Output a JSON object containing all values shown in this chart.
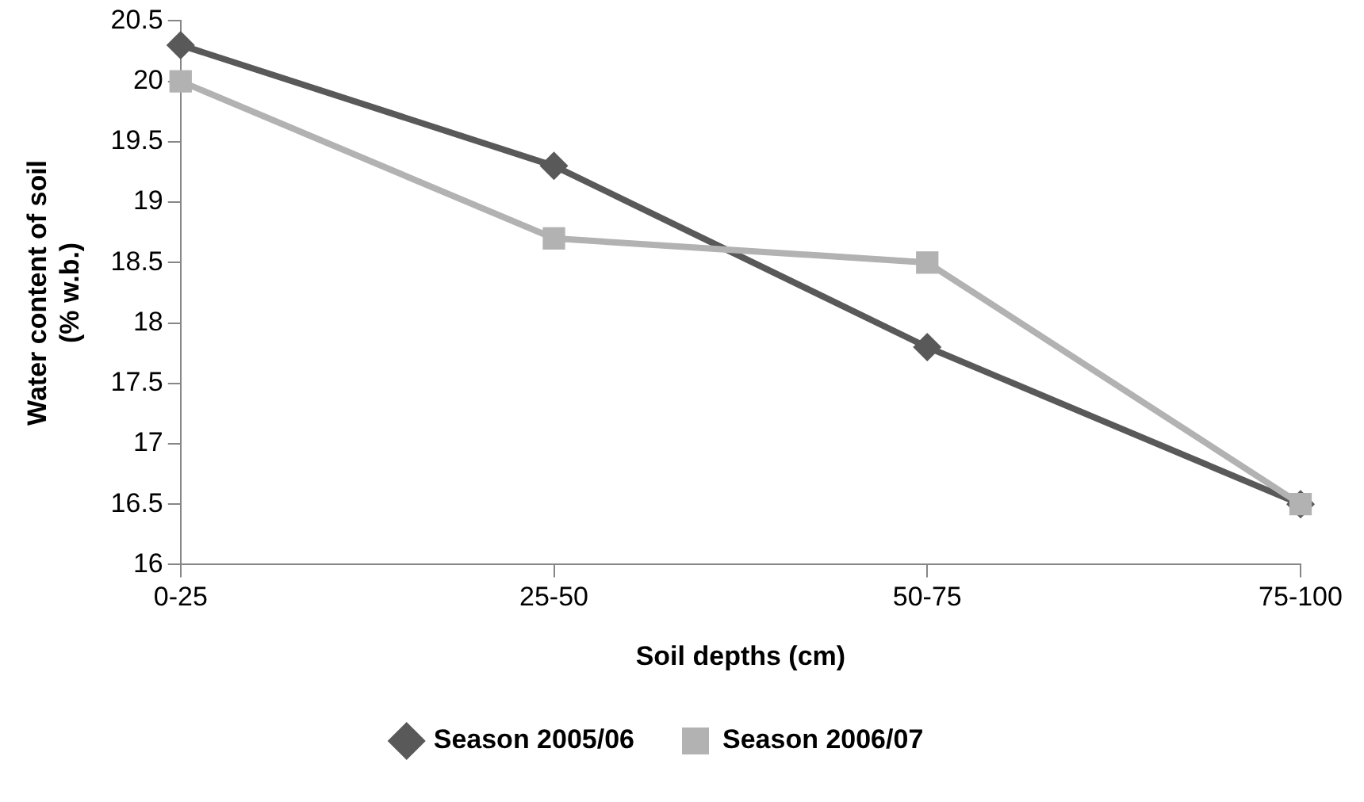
{
  "chart_data": {
    "type": "line",
    "xlabel": "Soil depths (cm)",
    "ylabel": "Water content of soil\n(% w.b.)",
    "categories": [
      "0-25",
      "25-50",
      "50-75",
      "75-100"
    ],
    "series": [
      {
        "name": "Season 2005/06",
        "color": "#595959",
        "marker": "diamond",
        "values": [
          20.3,
          19.3,
          17.8,
          16.5
        ]
      },
      {
        "name": "Season 2006/07",
        "color": "#b2b2b2",
        "marker": "square",
        "values": [
          20.0,
          18.7,
          18.5,
          16.5
        ]
      }
    ],
    "ylim": [
      16,
      20.5
    ],
    "yticks": [
      16,
      16.5,
      17,
      17.5,
      18,
      18.5,
      19,
      19.5,
      20,
      20.5
    ],
    "grid": false,
    "legend": "bottom"
  }
}
